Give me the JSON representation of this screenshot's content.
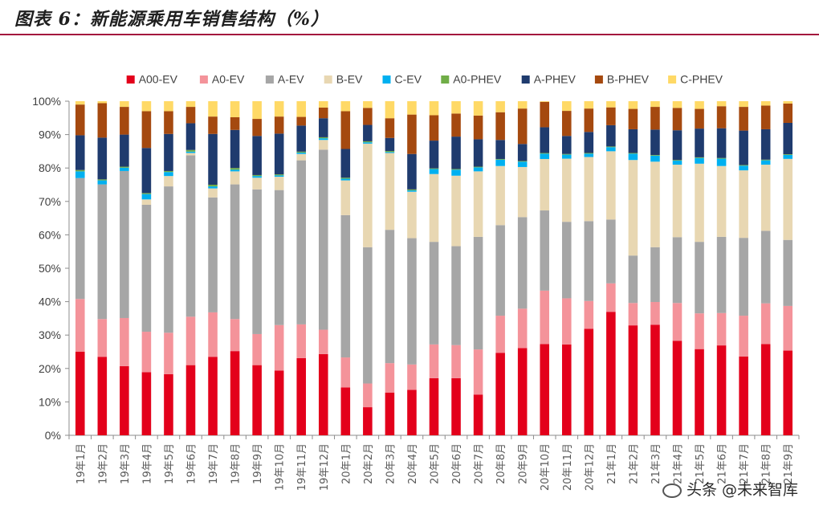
{
  "header": {
    "title": "图表 6：新能源乘用车销售结构（%）"
  },
  "watermark": {
    "text": "头条 @未来智库"
  },
  "chart_data": {
    "type": "bar",
    "stacked": true,
    "categories": [
      "19年1月",
      "19年2月",
      "19年3月",
      "19年4月",
      "19年5月",
      "19年6月",
      "19年7月",
      "19年8月",
      "19年9月",
      "19年10月",
      "19年11月",
      "19年12月",
      "20年1月",
      "20年2月",
      "20年3月",
      "20年4月",
      "20年5月",
      "20年6月",
      "20年7月",
      "20年8月",
      "20年9月",
      "20年10月",
      "20年11月",
      "20年12月",
      "21年1月",
      "21年2月",
      "21年3月",
      "21年4月",
      "21年5月",
      "21年6月",
      "21年7月",
      "21年8月",
      "21年9月"
    ],
    "series": [
      {
        "name": "A00-EV",
        "color": "#e3001b",
        "values": [
          25,
          23.5,
          20.7,
          18.9,
          18.3,
          21,
          23.5,
          25.2,
          21,
          19.4,
          23.1,
          24.3,
          14.3,
          8.4,
          12.8,
          13.6,
          17.1,
          17.1,
          12.2,
          24.7,
          26.1,
          27.3,
          27.2,
          31.9,
          36,
          32.9,
          33.1,
          28.3,
          25.8,
          26.9,
          23.6,
          27.3,
          25.4
        ]
      },
      {
        "name": "A0-EV",
        "color": "#f4939a",
        "values": [
          15.8,
          11.3,
          14.4,
          12.1,
          12.4,
          14.5,
          13.3,
          9.6,
          9.3,
          13.6,
          10.1,
          7.3,
          9,
          7.1,
          8.8,
          7.6,
          10.1,
          9.9,
          13.5,
          11.1,
          11.8,
          16,
          13.8,
          8.3,
          8.3,
          6.7,
          6.8,
          11.3,
          10.7,
          9.7,
          12.2,
          12.2,
          13.4
        ]
      },
      {
        "name": "A-EV",
        "color": "#a6a6a6",
        "values": [
          36.2,
          40.3,
          44,
          38,
          43.8,
          48.3,
          34.4,
          40.3,
          43.3,
          40.4,
          49.1,
          53.9,
          42.6,
          40.8,
          39.9,
          37.8,
          30.7,
          29.6,
          33.7,
          27.1,
          27.4,
          24,
          22.9,
          23.9,
          18.6,
          14.2,
          16.4,
          19.7,
          21.4,
          22.8,
          23.3,
          21.7,
          19.8
        ]
      },
      {
        "name": "B-EV",
        "color": "#e8d7b2",
        "values": [
          0,
          0,
          0,
          1.6,
          3.1,
          0.7,
          2.7,
          3.9,
          3.5,
          4,
          1.9,
          2.9,
          10.4,
          31,
          23,
          13.9,
          20.3,
          21.1,
          19.6,
          17.7,
          15,
          15.4,
          18.9,
          19.2,
          19.9,
          28.6,
          25.6,
          21.7,
          23.4,
          21.2,
          20.2,
          19.8,
          24.3
        ]
      },
      {
        "name": "C-EV",
        "color": "#00b0f0",
        "values": [
          2,
          1.2,
          1,
          1.6,
          1.2,
          0.4,
          0.6,
          0.5,
          0.5,
          0.4,
          0.4,
          0.5,
          0.5,
          0.4,
          0.3,
          0.4,
          1.5,
          1.8,
          1.2,
          1.9,
          1.6,
          1.6,
          1.2,
          1,
          1.2,
          1.9,
          1.8,
          1.2,
          1.7,
          2.2,
          1.4,
          1.3,
          1.2
        ]
      },
      {
        "name": "A0-PHEV",
        "color": "#70ad47",
        "values": [
          0.4,
          0.3,
          0.3,
          0.3,
          0.3,
          0.5,
          0.5,
          0.5,
          0.3,
          0.3,
          0.3,
          0.3,
          0.3,
          0.3,
          0.3,
          0.3,
          0.2,
          0.2,
          0.2,
          0.2,
          0.2,
          0.2,
          0.2,
          0.2,
          0.2,
          0.2,
          0.2,
          0.2,
          0.2,
          0.2,
          0.2,
          0.2,
          0.2
        ]
      },
      {
        "name": "A-PHEV",
        "color": "#1f3b6e",
        "values": [
          10.4,
          12.5,
          9.6,
          13.5,
          11.1,
          8,
          15.2,
          11.4,
          11.7,
          12.2,
          7.8,
          5.7,
          8.6,
          4.9,
          3.9,
          10.6,
          8.3,
          9.7,
          8.2,
          5.7,
          5.1,
          7.7,
          5.4,
          6.3,
          6.2,
          7.1,
          7.6,
          8.9,
          8.6,
          8.9,
          10.3,
          9.1,
          9.4
        ]
      },
      {
        "name": "B-PHEV",
        "color": "#a5490f",
        "values": [
          9.2,
          10.3,
          8.3,
          11,
          6.8,
          4.9,
          5.2,
          3.8,
          5.1,
          5.1,
          2.6,
          3.2,
          11.3,
          5.1,
          5.9,
          11.8,
          7.6,
          6.9,
          7.1,
          8.3,
          10.6,
          7.6,
          7.5,
          7,
          5.2,
          6.1,
          6.8,
          6.7,
          5.9,
          6.6,
          7.1,
          7.1,
          5.8
        ]
      },
      {
        "name": "C-PHEV",
        "color": "#ffd966",
        "values": [
          1,
          0.6,
          1.7,
          3,
          3,
          1.7,
          4.6,
          4.8,
          5.3,
          4.6,
          4.7,
          1.9,
          3,
          2,
          5.1,
          4,
          4.2,
          3.7,
          4.3,
          3.3,
          2.2,
          0.2,
          2.9,
          2.2,
          1.8,
          2.3,
          1.7,
          2,
          2.3,
          1.5,
          1.7,
          1.3,
          0.7
        ]
      }
    ],
    "y_ticks": [
      "0%",
      "10%",
      "20%",
      "30%",
      "40%",
      "50%",
      "60%",
      "70%",
      "80%",
      "90%",
      "100%"
    ],
    "ylim": [
      0,
      100
    ],
    "grid": false,
    "legend_position": "top"
  }
}
